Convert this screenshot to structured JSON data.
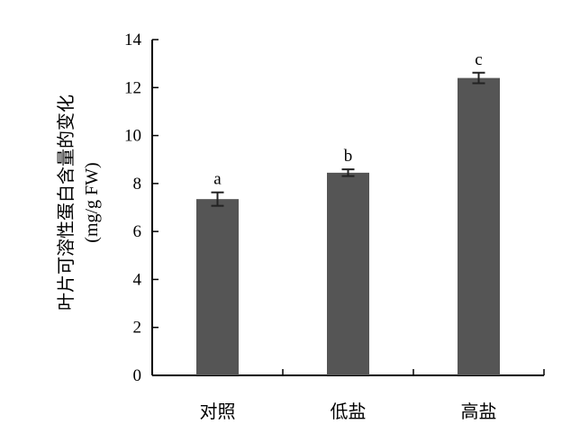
{
  "chart_data": {
    "type": "bar",
    "categories": [
      "对照",
      "低盐",
      "高盐"
    ],
    "values": [
      7.35,
      8.45,
      12.4
    ],
    "errors": [
      0.28,
      0.14,
      0.22
    ],
    "significance": [
      "a",
      "b",
      "c"
    ],
    "ylabel_line1": "叶片可溶性蛋白含量的变化",
    "ylabel_line2": "(mg/g FW)",
    "ylim": [
      0,
      14
    ],
    "yticks": [
      0,
      2,
      4,
      6,
      8,
      10,
      12,
      14
    ],
    "yticks_text": [
      "0",
      "2",
      "4",
      "6",
      "8",
      "10",
      "12",
      "14"
    ],
    "grid": false,
    "legend": "none",
    "bar_color": "#555555"
  }
}
